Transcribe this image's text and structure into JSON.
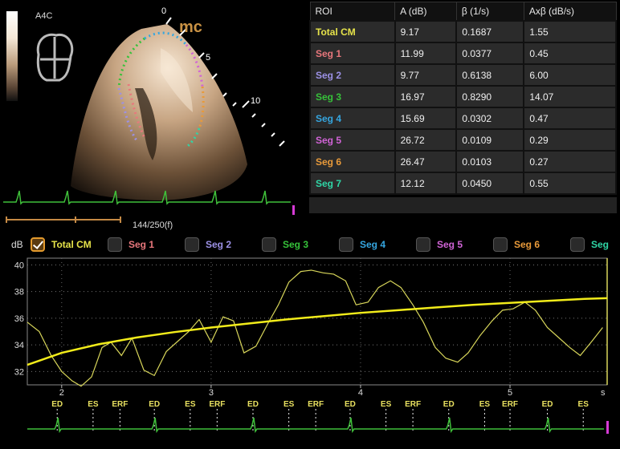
{
  "ultrasound": {
    "view": "A4C",
    "depth_marks": [
      "0",
      "5",
      "10"
    ],
    "overlay_letters": "mc",
    "frame_counter": "144/250(f)"
  },
  "table": {
    "headers": [
      "ROI",
      "A (dB)",
      "β (1/s)",
      "Axβ (dB/s)"
    ],
    "rows": [
      {
        "roi": "Total CM",
        "a": "9.17",
        "beta": "0.1687",
        "axb": "1.55",
        "color": "#e6e34a"
      },
      {
        "roi": "Seg 1",
        "a": "11.99",
        "beta": "0.0377",
        "axb": "0.45",
        "color": "#e8777c"
      },
      {
        "roi": "Seg 2",
        "a": "9.77",
        "beta": "0.6138",
        "axb": "6.00",
        "color": "#9c91e6"
      },
      {
        "roi": "Seg 3",
        "a": "16.97",
        "beta": "0.8290",
        "axb": "14.07",
        "color": "#36c23a"
      },
      {
        "roi": "Seg 4",
        "a": "15.69",
        "beta": "0.0302",
        "axb": "0.47",
        "color": "#35a6e0"
      },
      {
        "roi": "Seg 5",
        "a": "26.72",
        "beta": "0.0109",
        "axb": "0.29",
        "color": "#d063d6"
      },
      {
        "roi": "Seg 6",
        "a": "26.47",
        "beta": "0.0103",
        "axb": "0.27",
        "color": "#e89a3a"
      },
      {
        "roi": "Seg 7",
        "a": "12.12",
        "beta": "0.0450",
        "axb": "0.55",
        "color": "#2fd6a6"
      }
    ]
  },
  "legend": {
    "items": [
      {
        "label": "Total CM",
        "checked": true,
        "color": "#e6e34a"
      },
      {
        "label": "Seg 1",
        "checked": false,
        "color": "#e8777c"
      },
      {
        "label": "Seg 2",
        "checked": false,
        "color": "#9c91e6"
      },
      {
        "label": "Seg 3",
        "checked": false,
        "color": "#36c23a"
      },
      {
        "label": "Seg 4",
        "checked": false,
        "color": "#35a6e0"
      },
      {
        "label": "Seg 5",
        "checked": false,
        "color": "#d063d6"
      },
      {
        "label": "Seg 6",
        "checked": false,
        "color": "#e89a3a"
      },
      {
        "label": "Seg",
        "checked": false,
        "color": "#2fd6a6"
      }
    ]
  },
  "chart_data": {
    "type": "line",
    "ylabel": "dB",
    "xlabel": "s",
    "ylim": [
      31,
      40.5
    ],
    "xlim": [
      1.77,
      5.65
    ],
    "y_ticks": [
      32,
      34,
      36,
      38,
      40
    ],
    "x_ticks": [
      2,
      3,
      4,
      5
    ],
    "grid": true,
    "series": [
      {
        "color": "#d8d65a",
        "x": [
          1.77,
          1.85,
          1.93,
          2.0,
          2.07,
          2.13,
          2.2,
          2.27,
          2.33,
          2.4,
          2.47,
          2.55,
          2.62,
          2.7,
          2.78,
          2.85,
          2.92,
          3.0,
          3.08,
          3.15,
          3.22,
          3.3,
          3.38,
          3.45,
          3.52,
          3.6,
          3.67,
          3.75,
          3.82,
          3.9,
          3.97,
          4.05,
          4.12,
          4.2,
          4.27,
          4.35,
          4.42,
          4.5,
          4.57,
          4.65,
          4.72,
          4.8,
          4.88,
          4.95,
          5.02,
          5.1,
          5.17,
          5.25,
          5.32,
          5.4,
          5.47,
          5.55,
          5.62
        ],
        "values": [
          35.7,
          35.0,
          33.2,
          32.0,
          31.3,
          30.9,
          31.6,
          33.8,
          34.2,
          33.2,
          34.5,
          32.1,
          31.7,
          33.5,
          34.3,
          35.0,
          35.9,
          34.2,
          36.1,
          35.8,
          33.4,
          33.9,
          35.6,
          37.0,
          38.7,
          39.5,
          39.6,
          39.4,
          39.3,
          38.8,
          37.0,
          37.2,
          38.3,
          38.8,
          38.3,
          37.0,
          35.7,
          33.8,
          33.0,
          32.7,
          33.4,
          34.7,
          35.8,
          36.6,
          36.7,
          37.2,
          36.6,
          35.3,
          34.6,
          33.8,
          33.2,
          34.3,
          35.3
        ]
      },
      {
        "color": "#f2ec1a",
        "x": [
          1.77,
          2.0,
          2.25,
          2.5,
          2.75,
          3.0,
          3.25,
          3.5,
          3.75,
          4.0,
          4.25,
          4.5,
          4.75,
          5.0,
          5.25,
          5.5,
          5.65
        ],
        "values": [
          32.5,
          33.4,
          34.05,
          34.55,
          34.95,
          35.3,
          35.6,
          35.9,
          36.15,
          36.4,
          36.6,
          36.8,
          37.0,
          37.15,
          37.3,
          37.45,
          37.5
        ]
      }
    ],
    "events": [
      {
        "label": "ED",
        "x": 1.97
      },
      {
        "label": "ES",
        "x": 2.21
      },
      {
        "label": "ERF",
        "x": 2.39
      },
      {
        "label": "ED",
        "x": 2.62
      },
      {
        "label": "ES",
        "x": 2.86
      },
      {
        "label": "ERF",
        "x": 3.04
      },
      {
        "label": "ED",
        "x": 3.28
      },
      {
        "label": "ES",
        "x": 3.52
      },
      {
        "label": "ERF",
        "x": 3.7
      },
      {
        "label": "ED",
        "x": 3.93
      },
      {
        "label": "ES",
        "x": 4.17
      },
      {
        "label": "ERF",
        "x": 4.35
      },
      {
        "label": "ED",
        "x": 4.59
      },
      {
        "label": "ES",
        "x": 4.83
      },
      {
        "label": "ERF",
        "x": 5.0
      },
      {
        "label": "ED",
        "x": 5.25
      },
      {
        "label": "ES",
        "x": 5.49
      }
    ]
  }
}
